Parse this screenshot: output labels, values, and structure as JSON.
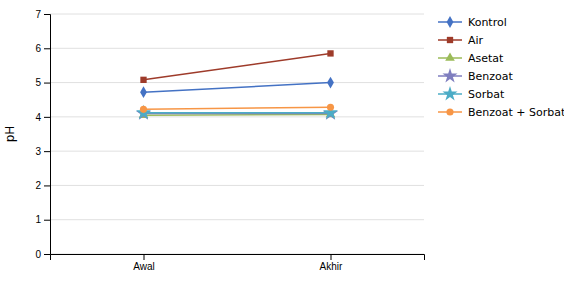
{
  "chart_data": {
    "type": "line",
    "categories": [
      "Awal",
      "Akhir"
    ],
    "series": [
      {
        "name": "Kontrol",
        "color": "#4472C4",
        "marker": "diamond",
        "values": [
          4.72,
          5.0
        ]
      },
      {
        "name": "Air",
        "color": "#9E3B2A",
        "marker": "square",
        "values": [
          5.08,
          5.85
        ]
      },
      {
        "name": "Asetat",
        "color": "#9BBB59",
        "marker": "triangle",
        "values": [
          4.05,
          4.07
        ]
      },
      {
        "name": "Benzoat",
        "color": "#7F7EBF",
        "marker": "star",
        "values": [
          4.1,
          4.1
        ]
      },
      {
        "name": "Sorbat",
        "color": "#4BACC6",
        "marker": "star",
        "values": [
          4.12,
          4.12
        ]
      },
      {
        "name": "Benzoat + Sorbat",
        "color": "#F79646",
        "marker": "circle",
        "values": [
          4.22,
          4.28
        ]
      }
    ],
    "ylabel": "pH",
    "ylim": [
      0,
      7
    ],
    "yticks": [
      0,
      1,
      2,
      3,
      4,
      5,
      6,
      7
    ],
    "grid": true,
    "legend": "right"
  }
}
